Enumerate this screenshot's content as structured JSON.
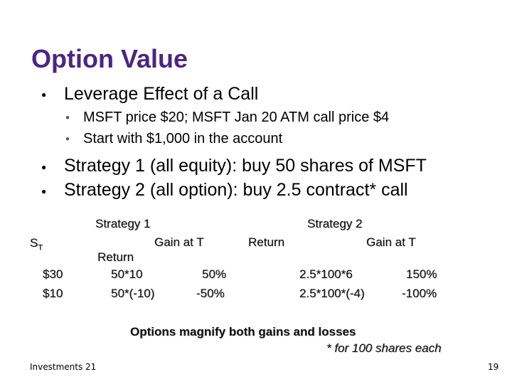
{
  "title": "Option Value",
  "bullets": {
    "leverage": "Leverage Effect of a Call",
    "sub1": "MSFT price $20; MSFT Jan 20 ATM call price $4",
    "sub2": "Start with $1,000 in the account",
    "strategy1": "Strategy 1 (all equity): buy 50 shares of MSFT",
    "strategy2": "Strategy 2 (all option): buy 2.5 contract* call"
  },
  "table": {
    "strategy1_header": "Strategy 1",
    "strategy2_header": "Strategy 2",
    "gain_s1": "Gain at T",
    "gain_s2": "Gain at T",
    "return_s2": "Return",
    "return_s1": "Return",
    "st_label": "S",
    "st_sub": "T",
    "rows": [
      {
        "st": "$30",
        "s1_gain": "50*10",
        "s1_return": "50%",
        "s2_gain": "2.5*100*6",
        "s2_return": "150%"
      },
      {
        "st": "$10",
        "s1_gain": "50*(-10)",
        "s1_return": "-50%",
        "s2_gain": "2.5*100*(-4)",
        "s2_return": "-100%"
      }
    ]
  },
  "conclusion": "Options magnify both gains and losses",
  "footnote": "* for 100 shares each",
  "footer_left": "Investments 21",
  "page_number": "19"
}
